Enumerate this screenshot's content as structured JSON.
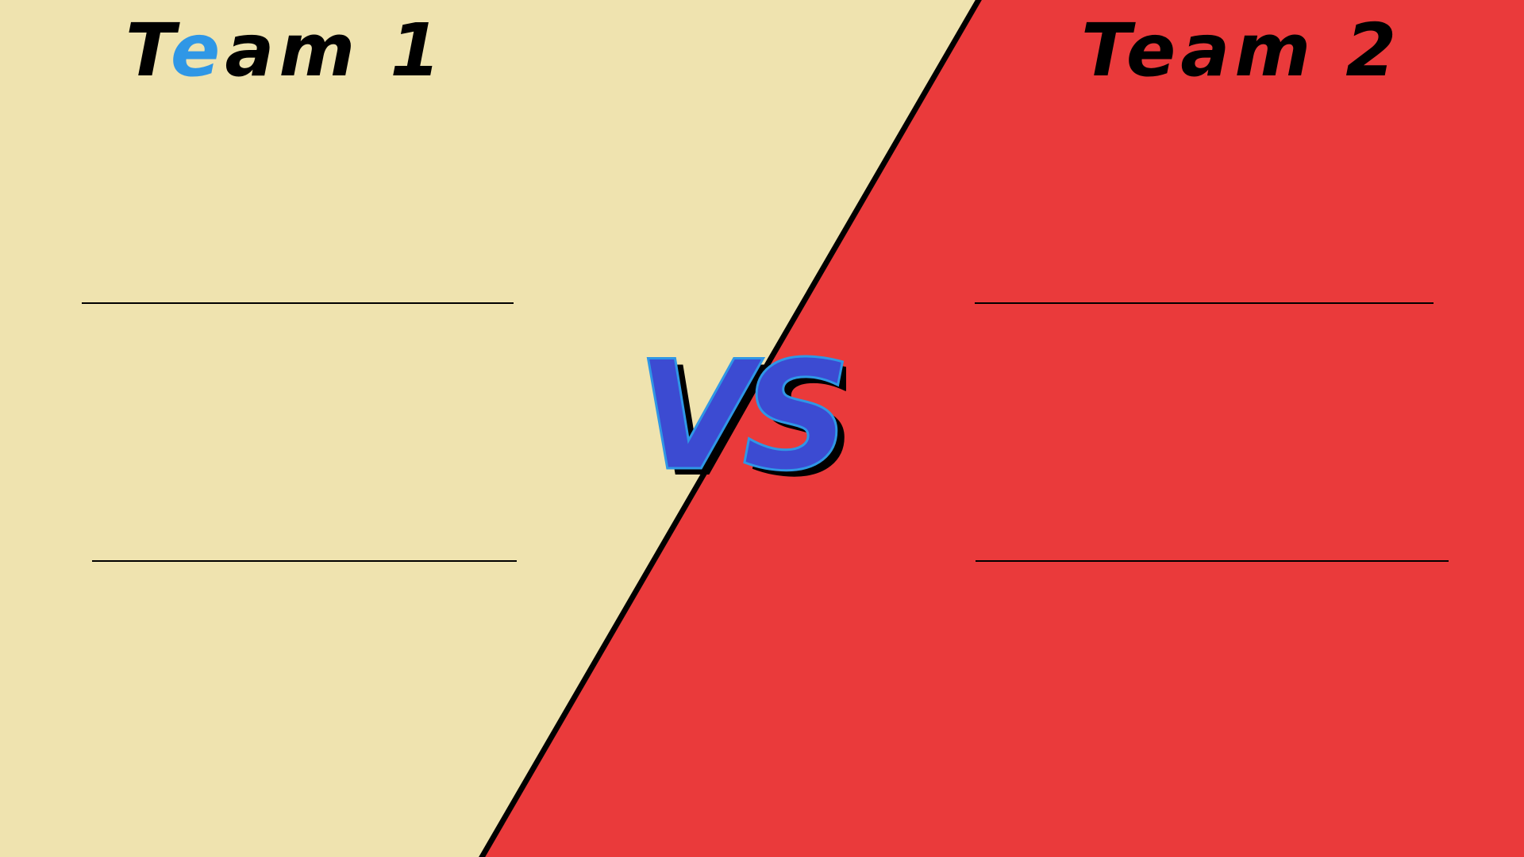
{
  "team1": {
    "title_prefix": "T",
    "title_accent": "e",
    "title_suffix": "am 1"
  },
  "team2": {
    "title": "Team 2"
  },
  "versus": {
    "label": "VS"
  },
  "colors": {
    "left_panel": "#efe3af",
    "right_panel": "#ea3a3b",
    "divider": "#000000",
    "vs_fill": "#3c4bd2",
    "vs_shadow": "#000000",
    "accent": "#2f97e6"
  }
}
